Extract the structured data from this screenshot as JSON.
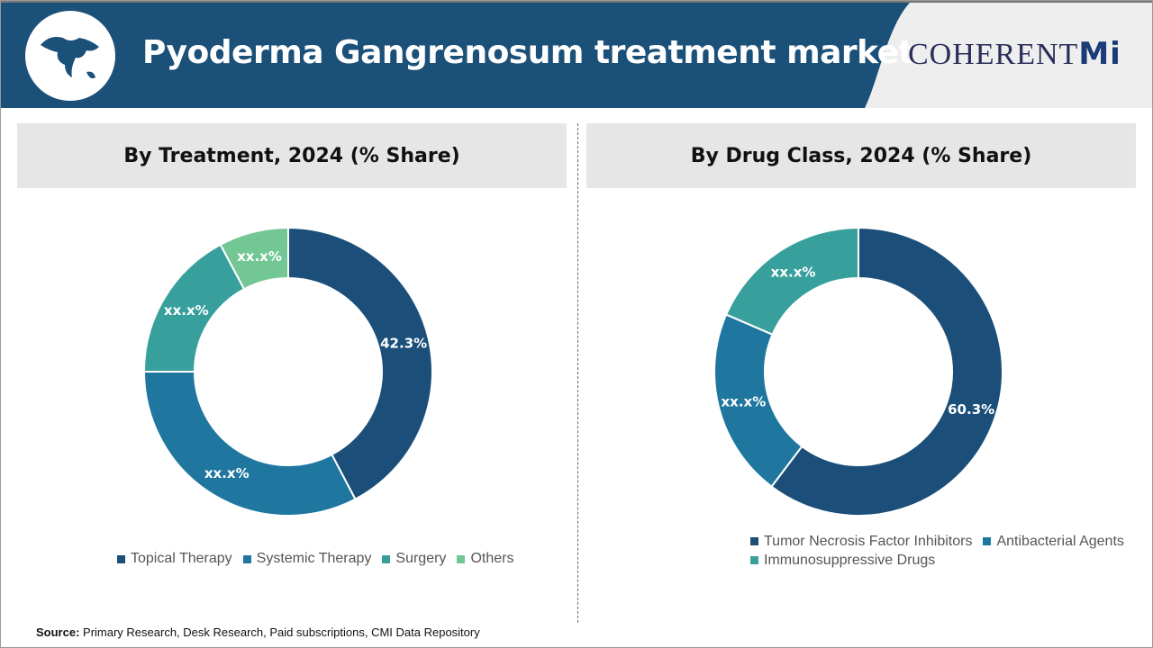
{
  "header": {
    "title": "Pyoderma Gangrenosum treatment market",
    "logo_text": "COHERENT",
    "logo_suffix": "Mi"
  },
  "source": {
    "label": "Source:",
    "text": " Primary Research, Desk Research, Paid subscriptions, CMI Data Repository"
  },
  "chart_data": [
    {
      "type": "pie",
      "donut": true,
      "title": "By Treatment, 2024 (% Share)",
      "legend": "bottom",
      "categories": [
        "Topical Therapy",
        "Systemic Therapy",
        "Surgery",
        "Others"
      ],
      "values": [
        42.3,
        32.7,
        17.2,
        7.8
      ],
      "labels": [
        "42.3%",
        "xx.x%",
        "xx.x%",
        "xx.x%"
      ],
      "colors": [
        "#1b4f79",
        "#1f77a0",
        "#38a09c",
        "#72c795"
      ]
    },
    {
      "type": "pie",
      "donut": true,
      "title": "By Drug Class, 2024 (% Share)",
      "legend": "bottom",
      "categories": [
        "Tumor Necrosis Factor Inhibitors",
        "Antibacterial Agents",
        "Immunosuppressive Drugs"
      ],
      "values": [
        60.3,
        21.2,
        18.5
      ],
      "labels": [
        "60.3%",
        "xx.x%",
        "xx.x%"
      ],
      "colors": [
        "#1b4f79",
        "#1f77a0",
        "#38a09c"
      ]
    }
  ]
}
